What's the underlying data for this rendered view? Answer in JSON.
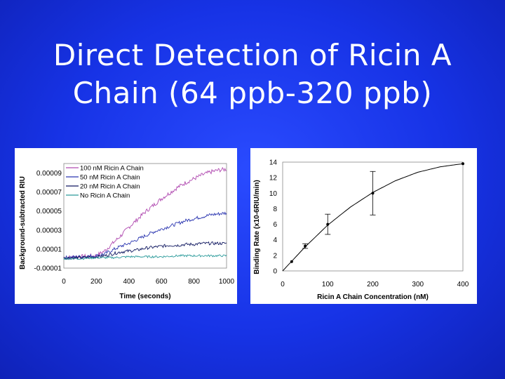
{
  "slide": {
    "title_line1": "Direct Detection of Ricin A",
    "title_line2": "Chain (64 ppb-320 ppb)"
  },
  "colors": {
    "background": "#1a36f0",
    "series_100nM": "#b04ab0",
    "series_50nM": "#2a35b0",
    "series_20nM": "#101860",
    "series_none": "#2a9a9a"
  },
  "chart_data": [
    {
      "type": "line",
      "xlabel": "Time (seconds)",
      "ylabel": "Background-subtracted RIU",
      "xlim": [
        0,
        1000
      ],
      "ylim": [
        -1e-05,
        0.0001
      ],
      "xticks": [
        "0",
        "200",
        "400",
        "600",
        "800",
        "1000"
      ],
      "yticks": [
        "-0.00001",
        "0.00001",
        "0.00003",
        "0.00005",
        "0.00007",
        "0.00009"
      ],
      "legend_position": "top-left",
      "series": [
        {
          "name": "100 nM Ricin A Chain",
          "color": "#b04ab0",
          "x": [
            0,
            100,
            200,
            250,
            300,
            350,
            400,
            450,
            500,
            550,
            600,
            650,
            700,
            750,
            800,
            850,
            900,
            950,
            1000
          ],
          "y": [
            1e-06,
            2e-06,
            3e-06,
            8e-06,
            1.6e-05,
            2.4e-05,
            3.3e-05,
            4.1e-05,
            4.9e-05,
            5.6e-05,
            6.3e-05,
            6.9e-05,
            7.5e-05,
            8e-05,
            8.4e-05,
            8.8e-05,
            9.1e-05,
            9.3e-05,
            9.4e-05
          ]
        },
        {
          "name": "50 nM Ricin A Chain",
          "color": "#2a35b0",
          "x": [
            0,
            100,
            200,
            250,
            300,
            350,
            400,
            450,
            500,
            550,
            600,
            650,
            700,
            750,
            800,
            850,
            900,
            950,
            1000
          ],
          "y": [
            1e-06,
            2e-06,
            3e-06,
            5e-06,
            9e-06,
            1.3e-05,
            1.6e-05,
            2e-05,
            2.4e-05,
            2.8e-05,
            3.1e-05,
            3.4e-05,
            3.7e-05,
            4e-05,
            4.2e-05,
            4.4e-05,
            4.6e-05,
            4.7e-05,
            4.8e-05
          ]
        },
        {
          "name": "20 nM Ricin A Chain",
          "color": "#101860",
          "x": [
            0,
            100,
            200,
            250,
            300,
            350,
            400,
            450,
            500,
            550,
            600,
            650,
            700,
            750,
            800,
            850,
            900,
            950,
            1000
          ],
          "y": [
            1e-06,
            1e-06,
            2e-06,
            3e-06,
            5e-06,
            7e-06,
            8e-06,
            9e-06,
            1.1e-05,
            1.2e-05,
            1.3e-05,
            1.4e-05,
            1.4e-05,
            1.5e-05,
            1.5e-05,
            1.6e-05,
            1.6e-05,
            1.6e-05,
            1.6e-05
          ]
        },
        {
          "name": "No Ricin A Chain",
          "color": "#2a9a9a",
          "x": [
            0,
            100,
            200,
            300,
            400,
            500,
            600,
            700,
            800,
            900,
            1000
          ],
          "y": [
            0.0,
            0.0,
            1e-06,
            1e-06,
            2e-06,
            2e-06,
            2e-06,
            3e-06,
            3e-06,
            3e-06,
            3e-06
          ]
        }
      ]
    },
    {
      "type": "scatter",
      "xlabel": "Ricin A Chain Concentration (nM)",
      "ylabel": "Binding Rate (x10-6RIU/min)",
      "xlim": [
        0,
        400
      ],
      "ylim": [
        0,
        14
      ],
      "xticks": [
        "0",
        "100",
        "200",
        "300",
        "400"
      ],
      "yticks": [
        "0",
        "2",
        "4",
        "6",
        "8",
        "10",
        "12",
        "14"
      ],
      "points": {
        "x": [
          20,
          50,
          100,
          200,
          400
        ],
        "y": [
          1.2,
          3.2,
          6.0,
          10.0,
          13.8
        ],
        "error": [
          0.0,
          0.3,
          1.3,
          2.8,
          0.0
        ]
      },
      "fit_curve": {
        "x": [
          0,
          50,
          100,
          150,
          200,
          250,
          300,
          350,
          400
        ],
        "y": [
          0.0,
          3.1,
          5.9,
          8.2,
          10.1,
          11.6,
          12.7,
          13.4,
          13.8
        ]
      }
    }
  ]
}
